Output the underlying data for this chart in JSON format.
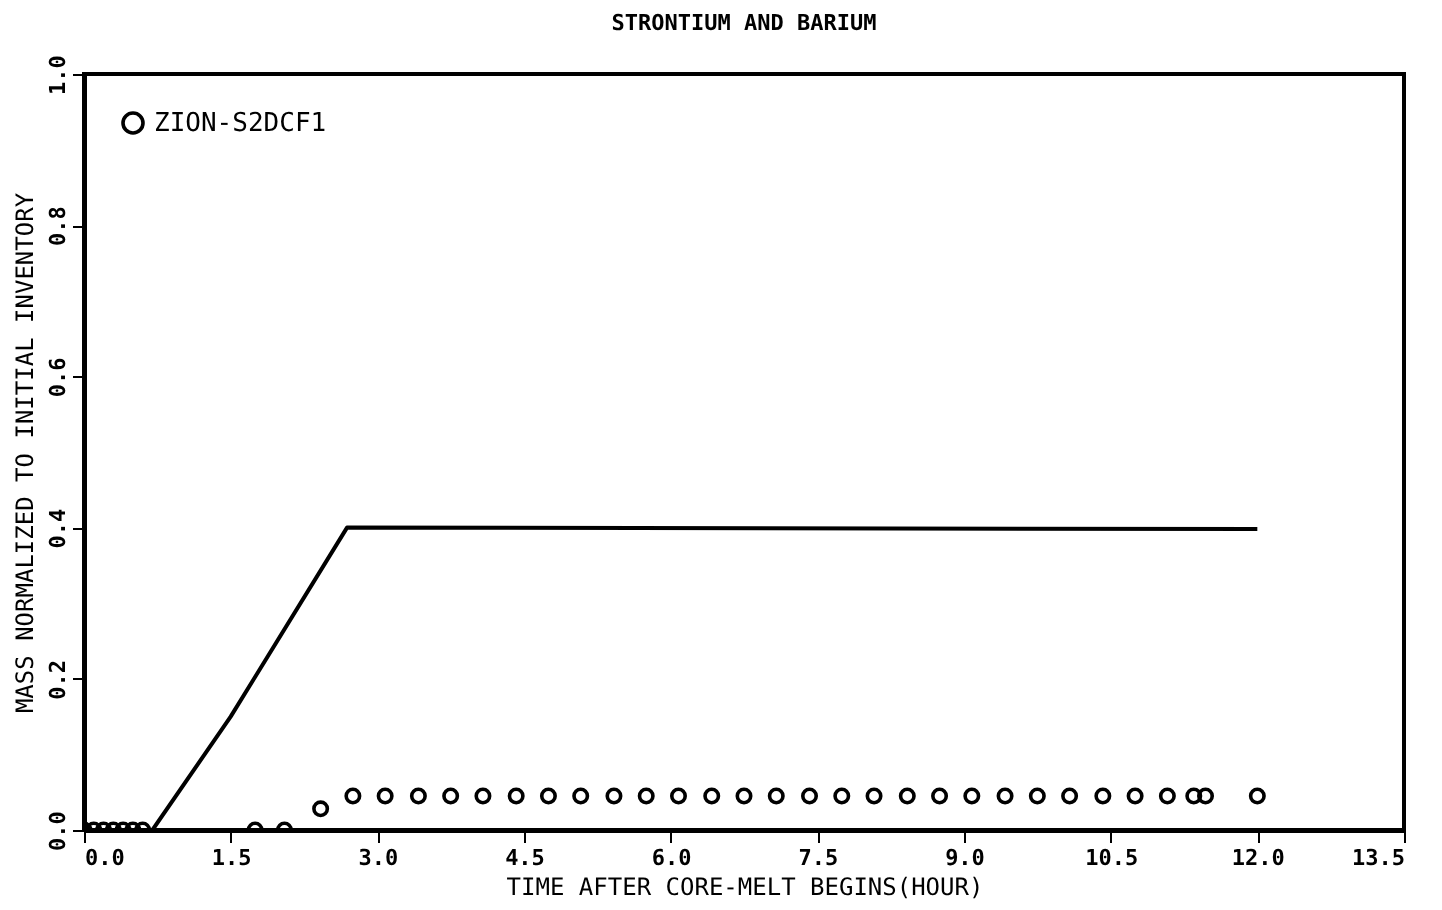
{
  "chart_data": {
    "type": "line",
    "title": "STRONTIUM AND BARIUM",
    "xlabel": "TIME AFTER CORE-MELT BEGINS(HOUR)",
    "ylabel": "MASS NORMALIZED TO INITIAL INVENTORY",
    "series": [
      {
        "color": "#000000",
        "x": [
          0,
          0.7,
          1.5,
          2.69,
          12.0
        ],
        "values": [
          0,
          0,
          0.15,
          0.4,
          0.398
        ]
      },
      {
        "type": "scatter",
        "name": "ZION-S2DCF1",
        "color": "#000000",
        "marker": "circle",
        "x": [
          0,
          0.1,
          0.2,
          0.3,
          0.4,
          0.5,
          0.6,
          1.75,
          2.05,
          2.42,
          2.75,
          3.08,
          3.42,
          3.75,
          4.08,
          4.42,
          4.75,
          5.08,
          5.42,
          5.75,
          6.08,
          6.42,
          6.75,
          7.08,
          7.42,
          7.75,
          8.08,
          8.42,
          8.75,
          9.08,
          9.42,
          9.75,
          10.08,
          10.42,
          10.75,
          11.08,
          11.35,
          11.47,
          12.0
        ],
        "values": [
          0,
          0,
          0,
          0,
          0,
          0,
          0,
          0,
          0,
          0.028,
          0.045,
          0.045,
          0.045,
          0.045,
          0.045,
          0.045,
          0.045,
          0.045,
          0.045,
          0.045,
          0.045,
          0.045,
          0.045,
          0.045,
          0.045,
          0.045,
          0.045,
          0.045,
          0.045,
          0.045,
          0.045,
          0.045,
          0.045,
          0.045,
          0.045,
          0.045,
          0.045,
          0.045,
          0.045
        ]
      }
    ],
    "xlim": [
      0,
      13.5
    ],
    "ylim": [
      0,
      1.0
    ],
    "xticks": [
      {
        "value": 0,
        "label": "0.0"
      },
      1.5,
      {
        "value": 3,
        "label": "3.0"
      },
      4.5,
      {
        "value": 6,
        "label": "6.0"
      },
      7.5,
      {
        "value": 9,
        "label": "9.0"
      },
      10.5,
      {
        "value": 12,
        "label": "12.0"
      },
      13.5
    ],
    "yticks": [
      {
        "value": 0,
        "label": "0.0"
      },
      0.2,
      0.4,
      0.6,
      0.8,
      {
        "value": 1,
        "label": "1.0"
      }
    ],
    "legend": "top left",
    "grid": false
  }
}
